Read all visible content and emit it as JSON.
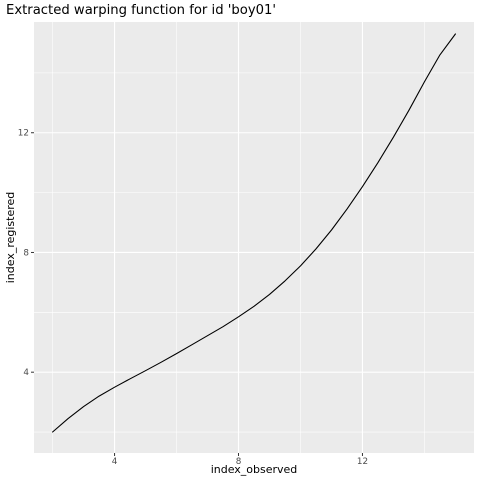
{
  "chart_data": {
    "type": "line",
    "title": "Extracted warping function for id 'boy01'",
    "xlabel": "index_observed",
    "ylabel": "index_registered",
    "xlim": [
      1.4,
      15.6
    ],
    "ylim": [
      1.3,
      15.7
    ],
    "x_ticks": [
      4,
      8,
      12
    ],
    "x_tick_labels": [
      "4",
      "8",
      "12"
    ],
    "x_minor_ticks": [
      2,
      6,
      10,
      14
    ],
    "y_ticks": [
      4,
      8,
      12
    ],
    "y_tick_labels": [
      "4",
      "8",
      "12"
    ],
    "y_minor_ticks": [
      2,
      6,
      10,
      14
    ],
    "grid": true,
    "legend": "none",
    "colors": {
      "panel_background": "#ebebeb",
      "grid_line": "#ffffff",
      "series_line": "#000000",
      "tick_text": "#4d4d4d",
      "tick_mark": "#333333"
    },
    "series": [
      {
        "x": [
          2.0,
          2.5,
          3.0,
          3.5,
          4.0,
          4.5,
          5.0,
          5.5,
          6.0,
          6.5,
          7.0,
          7.5,
          8.0,
          8.5,
          9.0,
          9.5,
          10.0,
          10.5,
          11.0,
          11.5,
          12.0,
          12.5,
          13.0,
          13.5,
          14.0,
          14.5,
          15.0
        ],
        "y": [
          2.0,
          2.45,
          2.85,
          3.2,
          3.5,
          3.78,
          4.05,
          4.33,
          4.62,
          4.92,
          5.22,
          5.52,
          5.85,
          6.2,
          6.6,
          7.05,
          7.55,
          8.12,
          8.75,
          9.45,
          10.2,
          11.0,
          11.85,
          12.75,
          13.7,
          14.6,
          15.3
        ]
      }
    ]
  }
}
